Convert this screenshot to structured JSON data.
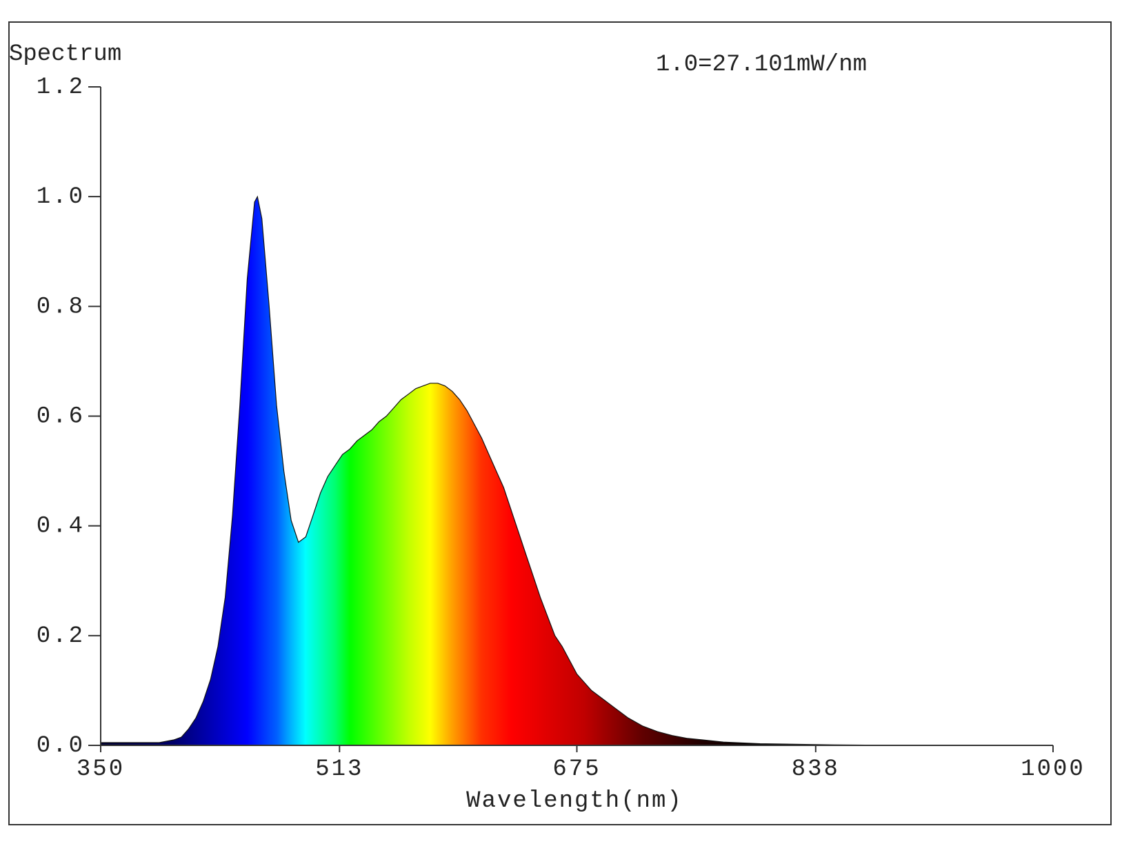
{
  "chart_data": {
    "type": "area",
    "title": "Spectrum",
    "annotation": "1.0=27.101mW/nm",
    "x_label": "Wavelength(nm)",
    "x": [
      350,
      360,
      370,
      380,
      390,
      400,
      405,
      410,
      415,
      420,
      425,
      430,
      435,
      440,
      445,
      450,
      455,
      457,
      460,
      465,
      470,
      475,
      480,
      485,
      490,
      495,
      500,
      505,
      510,
      515,
      520,
      525,
      530,
      535,
      540,
      545,
      550,
      555,
      560,
      565,
      570,
      575,
      580,
      585,
      590,
      595,
      600,
      605,
      610,
      615,
      620,
      625,
      630,
      635,
      640,
      645,
      650,
      655,
      660,
      665,
      670,
      675,
      680,
      685,
      690,
      700,
      710,
      720,
      730,
      740,
      750,
      775,
      800,
      850,
      900,
      1000
    ],
    "values": [
      0.005,
      0.005,
      0.005,
      0.005,
      0.005,
      0.01,
      0.015,
      0.03,
      0.05,
      0.08,
      0.12,
      0.18,
      0.27,
      0.42,
      0.62,
      0.85,
      0.99,
      1.0,
      0.96,
      0.8,
      0.62,
      0.5,
      0.41,
      0.37,
      0.38,
      0.42,
      0.46,
      0.49,
      0.51,
      0.53,
      0.54,
      0.555,
      0.565,
      0.575,
      0.59,
      0.6,
      0.615,
      0.63,
      0.64,
      0.65,
      0.655,
      0.66,
      0.66,
      0.655,
      0.645,
      0.63,
      0.61,
      0.585,
      0.56,
      0.53,
      0.5,
      0.47,
      0.43,
      0.39,
      0.35,
      0.31,
      0.27,
      0.235,
      0.2,
      0.18,
      0.155,
      0.13,
      0.115,
      0.1,
      0.09,
      0.07,
      0.05,
      0.035,
      0.025,
      0.018,
      0.013,
      0.006,
      0.003,
      0.001,
      0.0,
      0.0
    ],
    "xlim": [
      350,
      1000
    ],
    "xticks": [
      350,
      513,
      675,
      838,
      1000
    ],
    "ylim": [
      0,
      1.2
    ],
    "yticks": [
      {
        "value": 0,
        "label": "0.0"
      },
      0.2,
      0.4,
      0.6,
      0.8,
      {
        "value": 1.0,
        "label": "1.0"
      },
      1.2
    ],
    "grid": false
  }
}
